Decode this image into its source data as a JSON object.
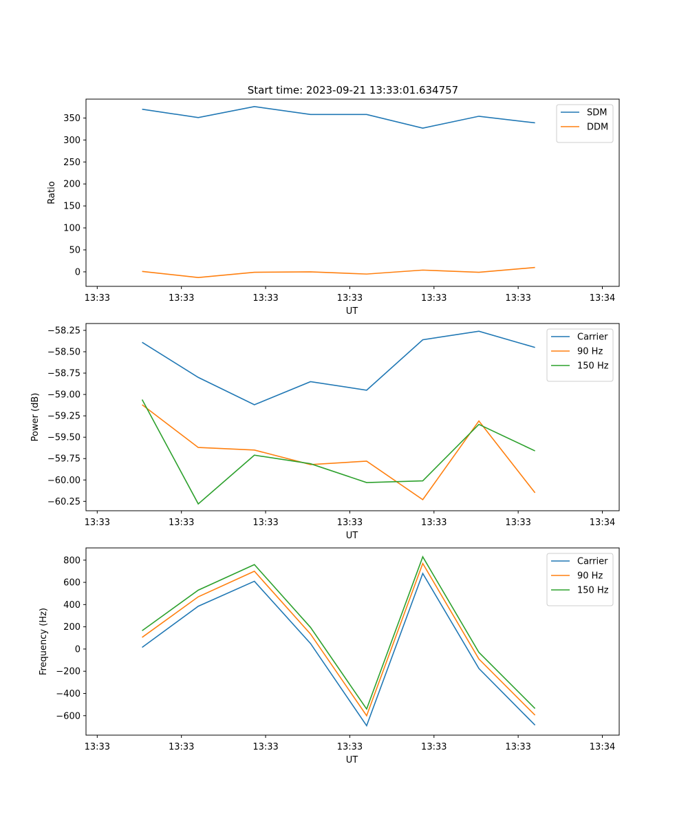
{
  "figure": {
    "title": "Start time: 2023-09-21 13:33:01.634757"
  },
  "colors": {
    "blue": "#1f77b4",
    "orange": "#ff7f0e",
    "green": "#2ca02c"
  },
  "chart_data": [
    {
      "type": "line",
      "title": "Start time: 2023-09-21 13:33:01.634757",
      "xlabel": "UT",
      "ylabel": "Ratio",
      "x_ticks": [
        "13:33",
        "13:33",
        "13:33",
        "13:33",
        "13:33",
        "13:33",
        "13:34"
      ],
      "x": [
        1,
        2,
        3,
        4,
        5,
        6,
        7,
        8
      ],
      "xlim": [
        0,
        9.5
      ],
      "ylim": [
        -33,
        393
      ],
      "y_ticks": [
        0,
        50,
        100,
        150,
        200,
        250,
        300,
        350
      ],
      "y_tick_labels": [
        "0",
        "50",
        "100",
        "150",
        "200",
        "250",
        "300",
        "350"
      ],
      "legend": "top-right",
      "series": [
        {
          "name": "SDM",
          "color": "#1f77b4",
          "values": [
            370,
            351,
            376,
            358,
            358,
            327,
            354,
            339
          ]
        },
        {
          "name": "DDM",
          "color": "#ff7f0e",
          "values": [
            1,
            -13,
            -1,
            0,
            -5,
            4,
            -1,
            10
          ]
        }
      ]
    },
    {
      "type": "line",
      "xlabel": "UT",
      "ylabel": "Power (dB)",
      "x_ticks": [
        "13:33",
        "13:33",
        "13:33",
        "13:33",
        "13:33",
        "13:33",
        "13:34"
      ],
      "x": [
        1,
        2,
        3,
        4,
        5,
        6,
        7,
        8
      ],
      "xlim": [
        0,
        9.5
      ],
      "ylim": [
        -60.36,
        -58.17
      ],
      "y_ticks": [
        -60.25,
        -60.0,
        -59.75,
        -59.5,
        -59.25,
        -59.0,
        -58.75,
        -58.5,
        -58.25
      ],
      "y_tick_labels": [
        "−60.25",
        "−60.00",
        "−59.75",
        "−59.50",
        "−59.25",
        "−59.00",
        "−58.75",
        "−58.50",
        "−58.25"
      ],
      "legend": "top-right",
      "series": [
        {
          "name": "Carrier",
          "color": "#1f77b4",
          "values": [
            -58.39,
            -58.8,
            -59.12,
            -58.85,
            -58.95,
            -58.36,
            -58.26,
            -58.45
          ]
        },
        {
          "name": "90 Hz",
          "color": "#ff7f0e",
          "values": [
            -59.12,
            -59.62,
            -59.65,
            -59.82,
            -59.78,
            -60.23,
            -59.31,
            -60.15
          ]
        },
        {
          "name": "150 Hz",
          "color": "#2ca02c",
          "values": [
            -59.06,
            -60.28,
            -59.71,
            -59.81,
            -60.03,
            -60.01,
            -59.35,
            -59.66
          ]
        }
      ]
    },
    {
      "type": "line",
      "xlabel": "UT",
      "ylabel": "Frequency (Hz)",
      "x_ticks": [
        "13:33",
        "13:33",
        "13:33",
        "13:33",
        "13:33",
        "13:33",
        "13:34"
      ],
      "x": [
        1,
        2,
        3,
        4,
        5,
        6,
        7,
        8
      ],
      "xlim": [
        0,
        9.5
      ],
      "ylim": [
        -775,
        910
      ],
      "y_ticks": [
        -600,
        -400,
        -200,
        0,
        200,
        400,
        600,
        800
      ],
      "y_tick_labels": [
        "−600",
        "−400",
        "−200",
        "0",
        "200",
        "400",
        "600",
        "800"
      ],
      "legend": "top-right",
      "series": [
        {
          "name": "Carrier",
          "color": "#1f77b4",
          "values": [
            15,
            385,
            610,
            50,
            -690,
            680,
            -175,
            -685
          ]
        },
        {
          "name": "90 Hz",
          "color": "#ff7f0e",
          "values": [
            105,
            470,
            700,
            135,
            -600,
            770,
            -90,
            -595
          ]
        },
        {
          "name": "150 Hz",
          "color": "#2ca02c",
          "values": [
            165,
            530,
            760,
            195,
            -540,
            830,
            -30,
            -535
          ]
        }
      ]
    }
  ]
}
